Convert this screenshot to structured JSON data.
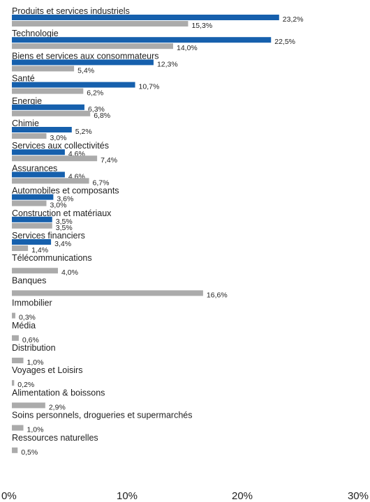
{
  "chart_data": {
    "type": "bar",
    "orientation": "horizontal",
    "xlim": [
      0,
      30
    ],
    "x_ticks": [
      {
        "value": 0,
        "label": "0%"
      },
      {
        "value": 10,
        "label": "10%"
      },
      {
        "value": 20,
        "label": "20%"
      },
      {
        "value": 30,
        "label": "30%"
      }
    ],
    "value_suffix": "%",
    "grid": false,
    "legend": "none",
    "categories": [
      "Produits et services industriels",
      "Technologie",
      "Biens et services aux consommateurs",
      "Santé",
      "Energie",
      "Chimie",
      "Services aux collectivités",
      "Assurances",
      "Automobiles et composants",
      "Construction et matériaux",
      "Services financiers",
      "Télécommunications",
      "Banques",
      "Immobilier",
      "Média",
      "Distribution",
      "Voyages et Loisirs",
      "Alimentation & boissons",
      "Soins personnels, drogueries et supermarchés",
      "Ressources naturelles"
    ],
    "series": [
      {
        "color": "#1660ad",
        "values": [
          23.2,
          22.5,
          12.3,
          10.7,
          6.3,
          5.2,
          4.6,
          4.6,
          3.6,
          3.5,
          3.4,
          null,
          null,
          null,
          null,
          null,
          null,
          null,
          null,
          null
        ],
        "labels": [
          "23,2%",
          "22,5%",
          "12,3%",
          "10,7%",
          "6,3%",
          "5,2%",
          "4,6%",
          "4,6%",
          "3,6%",
          "3,5%",
          "3,4%",
          null,
          null,
          null,
          null,
          null,
          null,
          null,
          null,
          null
        ]
      },
      {
        "color": "#ababab",
        "values": [
          15.3,
          14.0,
          5.4,
          6.2,
          6.8,
          3.0,
          7.4,
          6.7,
          3.0,
          3.5,
          1.4,
          4.0,
          16.6,
          0.3,
          0.6,
          1.0,
          0.2,
          2.9,
          1.0,
          0.5
        ],
        "labels": [
          "15,3%",
          "14,0%",
          "5,4%",
          "6,2%",
          "6,8%",
          "3,0%",
          "7,4%",
          "6,7%",
          "3,0%",
          "3,5%",
          "1,4%",
          "4,0%",
          "16,6%",
          "0,3%",
          "0,6%",
          "1,0%",
          "0,2%",
          "2,9%",
          "1,0%",
          "0,5%"
        ]
      }
    ]
  }
}
